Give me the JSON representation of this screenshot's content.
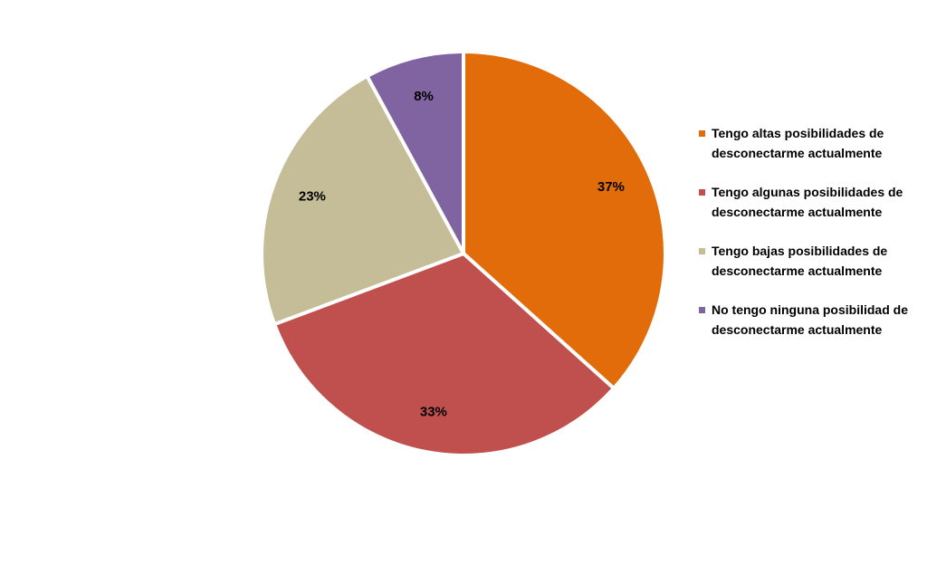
{
  "chart_data": {
    "type": "pie",
    "categories": [
      "Tengo altas posibilidades de desconectarme actualmente",
      "Tengo algunas posibilidades de desconectarme actualmente",
      "Tengo bajas posibilidades de desconectarme actualmente",
      "No tengo ninguna posibilidad de desconectarme actualmente"
    ],
    "values": [
      37,
      33,
      23,
      8
    ],
    "value_labels": [
      "37%",
      "33%",
      "23%",
      "8%"
    ],
    "colors": [
      "#e36c0a",
      "#c0504d",
      "#c4bd97",
      "#8064a2"
    ],
    "legend": "right"
  }
}
